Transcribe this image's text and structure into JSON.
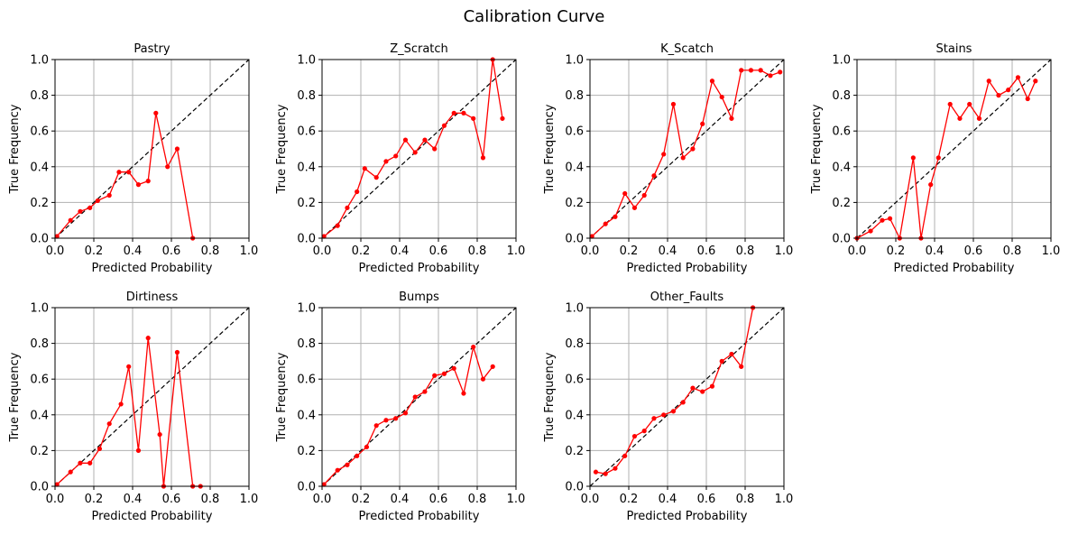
{
  "figure": {
    "title": "Calibration Curve"
  },
  "colors": {
    "series": "#ff0000",
    "diagonal": "#000000",
    "grid": "#b0b0b0"
  },
  "chart_data": [
    {
      "type": "line",
      "title": "Pastry",
      "xlabel": "Predicted Probability",
      "ylabel": "True Frequency",
      "xlim": [
        0,
        1
      ],
      "ylim": [
        0,
        1
      ],
      "xticks": [
        "0.0",
        "0.2",
        "0.4",
        "0.6",
        "0.8",
        "1.0"
      ],
      "yticks": [
        "0.0",
        "0.2",
        "0.4",
        "0.6",
        "0.8",
        "1.0"
      ],
      "grid": true,
      "reference_line": "diagonal",
      "x": [
        0.01,
        0.08,
        0.13,
        0.18,
        0.22,
        0.28,
        0.33,
        0.38,
        0.43,
        0.48,
        0.52,
        0.58,
        0.63,
        0.71
      ],
      "y": [
        0.01,
        0.1,
        0.15,
        0.17,
        0.21,
        0.24,
        0.37,
        0.37,
        0.3,
        0.32,
        0.7,
        0.4,
        0.5,
        0.0
      ]
    },
    {
      "type": "line",
      "title": "Z_Scratch",
      "xlabel": "Predicted Probability",
      "ylabel": "True Frequency",
      "xlim": [
        0,
        1
      ],
      "ylim": [
        0,
        1
      ],
      "xticks": [
        "0.0",
        "0.2",
        "0.4",
        "0.6",
        "0.8",
        "1.0"
      ],
      "yticks": [
        "0.0",
        "0.2",
        "0.4",
        "0.6",
        "0.8",
        "1.0"
      ],
      "grid": true,
      "reference_line": "diagonal",
      "x": [
        0.01,
        0.08,
        0.13,
        0.18,
        0.22,
        0.28,
        0.33,
        0.38,
        0.43,
        0.48,
        0.53,
        0.58,
        0.63,
        0.68,
        0.73,
        0.78,
        0.83,
        0.88,
        0.93
      ],
      "y": [
        0.01,
        0.07,
        0.17,
        0.26,
        0.39,
        0.34,
        0.43,
        0.46,
        0.55,
        0.48,
        0.55,
        0.5,
        0.63,
        0.7,
        0.7,
        0.67,
        0.45,
        1.0,
        0.67
      ]
    },
    {
      "type": "line",
      "title": "K_Scatch",
      "xlabel": "Predicted Probability",
      "ylabel": "True Frequency",
      "xlim": [
        0,
        1
      ],
      "ylim": [
        0,
        1
      ],
      "xticks": [
        "0.0",
        "0.2",
        "0.4",
        "0.6",
        "0.8",
        "1.0"
      ],
      "yticks": [
        "0.0",
        "0.2",
        "0.4",
        "0.6",
        "0.8",
        "1.0"
      ],
      "grid": true,
      "reference_line": "diagonal",
      "x": [
        0.01,
        0.08,
        0.13,
        0.18,
        0.23,
        0.28,
        0.33,
        0.38,
        0.43,
        0.48,
        0.53,
        0.58,
        0.63,
        0.68,
        0.73,
        0.78,
        0.83,
        0.88,
        0.93,
        0.98
      ],
      "y": [
        0.01,
        0.08,
        0.12,
        0.25,
        0.17,
        0.24,
        0.35,
        0.47,
        0.75,
        0.45,
        0.5,
        0.64,
        0.88,
        0.79,
        0.67,
        0.94,
        0.94,
        0.94,
        0.91,
        0.93
      ]
    },
    {
      "type": "line",
      "title": "Stains",
      "xlabel": "Predicted Probability",
      "ylabel": "True Frequency",
      "xlim": [
        0,
        1
      ],
      "ylim": [
        0,
        1
      ],
      "xticks": [
        "0.0",
        "0.2",
        "0.4",
        "0.6",
        "0.8",
        "1.0"
      ],
      "yticks": [
        "0.0",
        "0.2",
        "0.4",
        "0.6",
        "0.8",
        "1.0"
      ],
      "grid": true,
      "reference_line": "diagonal",
      "x": [
        0.0,
        0.07,
        0.13,
        0.17,
        0.22,
        0.29,
        0.33,
        0.38,
        0.42,
        0.48,
        0.53,
        0.58,
        0.63,
        0.68,
        0.73,
        0.78,
        0.83,
        0.88,
        0.92
      ],
      "y": [
        0.0,
        0.04,
        0.1,
        0.11,
        0.0,
        0.45,
        0.0,
        0.3,
        0.45,
        0.75,
        0.67,
        0.75,
        0.67,
        0.88,
        0.8,
        0.83,
        0.9,
        0.78,
        0.88
      ]
    },
    {
      "type": "line",
      "title": "Dirtiness",
      "xlabel": "Predicted Probability",
      "ylabel": "True Frequency",
      "xlim": [
        0,
        1
      ],
      "ylim": [
        0,
        1
      ],
      "xticks": [
        "0.0",
        "0.2",
        "0.4",
        "0.6",
        "0.8",
        "1.0"
      ],
      "yticks": [
        "0.0",
        "0.2",
        "0.4",
        "0.6",
        "0.8",
        "1.0"
      ],
      "grid": true,
      "reference_line": "diagonal",
      "x": [
        0.01,
        0.08,
        0.13,
        0.18,
        0.23,
        0.28,
        0.34,
        0.38,
        0.43,
        0.48,
        0.54,
        0.56,
        0.63,
        0.71,
        0.75
      ],
      "y": [
        0.01,
        0.08,
        0.13,
        0.13,
        0.21,
        0.35,
        0.46,
        0.67,
        0.2,
        0.83,
        0.29,
        0.0,
        0.75,
        0.0,
        0.0
      ]
    },
    {
      "type": "line",
      "title": "Bumps",
      "xlabel": "Predicted Probability",
      "ylabel": "True Frequency",
      "xlim": [
        0,
        1
      ],
      "ylim": [
        0,
        1
      ],
      "xticks": [
        "0.0",
        "0.2",
        "0.4",
        "0.6",
        "0.8",
        "1.0"
      ],
      "yticks": [
        "0.0",
        "0.2",
        "0.4",
        "0.6",
        "0.8",
        "1.0"
      ],
      "grid": true,
      "reference_line": "diagonal",
      "x": [
        0.01,
        0.08,
        0.13,
        0.18,
        0.23,
        0.28,
        0.33,
        0.38,
        0.43,
        0.48,
        0.53,
        0.58,
        0.63,
        0.68,
        0.73,
        0.78,
        0.83,
        0.88
      ],
      "y": [
        0.01,
        0.09,
        0.12,
        0.17,
        0.22,
        0.34,
        0.37,
        0.38,
        0.41,
        0.5,
        0.53,
        0.62,
        0.63,
        0.66,
        0.52,
        0.78,
        0.6,
        0.67
      ]
    },
    {
      "type": "line",
      "title": "Other_Faults",
      "xlabel": "Predicted Probability",
      "ylabel": "True Frequency",
      "xlim": [
        0,
        1
      ],
      "ylim": [
        0,
        1
      ],
      "xticks": [
        "0.0",
        "0.2",
        "0.4",
        "0.6",
        "0.8",
        "1.0"
      ],
      "yticks": [
        "0.0",
        "0.2",
        "0.4",
        "0.6",
        "0.8",
        "1.0"
      ],
      "grid": true,
      "reference_line": "diagonal",
      "x": [
        0.03,
        0.08,
        0.13,
        0.18,
        0.23,
        0.28,
        0.33,
        0.38,
        0.43,
        0.48,
        0.53,
        0.58,
        0.63,
        0.68,
        0.73,
        0.78,
        0.84
      ],
      "y": [
        0.08,
        0.07,
        0.1,
        0.17,
        0.28,
        0.31,
        0.38,
        0.4,
        0.42,
        0.47,
        0.55,
        0.53,
        0.56,
        0.7,
        0.74,
        0.67,
        1.0
      ]
    }
  ]
}
